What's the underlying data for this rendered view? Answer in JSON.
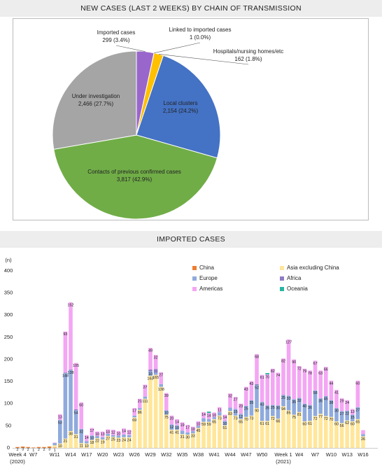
{
  "chart_data": [
    {
      "type": "pie",
      "title": "NEW CASES (LAST 2 WEEKS) BY CHAIN OF TRANSMISSION",
      "categories": [
        "Imported cases",
        "Linked to imported cases",
        "Hospitals/nursing homes/etc",
        "Local clusters",
        "Contacts of previous confirmed cases",
        "Under investigation"
      ],
      "values": [
        299,
        1,
        162,
        2154,
        3817,
        2466
      ],
      "value_labels": [
        "299 (3.4%)",
        "1 (0.0%)",
        "162 (1.8%)",
        "2,154 (24.2%)",
        "3,817 (42.9%)",
        "2,466 (27.7%)"
      ],
      "colors": [
        "#9966cc",
        "#ed7d31",
        "#ffc000",
        "#4472c4",
        "#70ad47",
        "#a5a5a5"
      ]
    },
    {
      "type": "bar",
      "stacked": true,
      "title": "IMPORTED CASES",
      "y_label": "(n)",
      "categories": [
        "Week 4",
        null,
        null,
        "W7",
        null,
        null,
        null,
        "W11",
        null,
        null,
        "W14",
        null,
        null,
        "W17",
        null,
        null,
        "W20",
        null,
        null,
        "W23",
        null,
        null,
        "W26",
        null,
        null,
        "W29",
        null,
        null,
        "W32",
        null,
        null,
        "W35",
        null,
        null,
        "W38",
        null,
        null,
        "W41",
        null,
        null,
        "W44",
        null,
        null,
        "W47",
        null,
        null,
        "W50",
        null,
        null,
        null,
        "Week 1",
        null,
        null,
        "W4",
        null,
        null,
        "W7",
        null,
        null,
        "W10",
        null,
        null,
        "W13",
        null,
        null,
        "W16"
      ],
      "year_labels": [
        {
          "index": 0,
          "label": "(2020)"
        },
        {
          "index": 50,
          "label": "(2021)"
        }
      ],
      "ylim": [
        0,
        400
      ],
      "yticks": [
        0,
        50,
        100,
        150,
        200,
        250,
        300,
        350,
        400
      ],
      "grid": false,
      "legend": "top-right",
      "series": [
        {
          "name": "China",
          "color": "#ed7d31",
          "values": [
            2,
            3,
            2,
            1,
            2,
            2,
            3,
            1,
            0,
            0,
            0,
            0,
            0,
            0,
            0,
            0,
            0,
            0,
            0,
            0,
            0,
            0,
            0,
            0,
            0,
            0,
            0,
            0,
            0,
            0,
            0,
            0,
            0,
            0,
            0,
            0,
            0,
            0,
            0,
            0,
            0,
            0,
            0,
            0,
            0,
            0,
            0,
            0,
            0,
            0,
            0,
            0,
            0,
            0,
            0,
            0,
            0,
            0,
            0,
            0,
            0,
            0,
            0,
            0,
            0,
            0
          ]
        },
        {
          "name": "Asia excluding China",
          "color": "#ffe699",
          "values": [
            0,
            0,
            0,
            0,
            0,
            0,
            1,
            5,
            10,
            21,
            38,
            31,
            11,
            10,
            18,
            22,
            19,
            27,
            25,
            23,
            24,
            24,
            69,
            86,
            111,
            163,
            165,
            138,
            75,
            41,
            41,
            31,
            30,
            33,
            45,
            59,
            59,
            65,
            73,
            51,
            83,
            73,
            65,
            70,
            73,
            90,
            61,
            61,
            72,
            66,
            94,
            85,
            75,
            81,
            60,
            61,
            72,
            77,
            72,
            70,
            60,
            56,
            62,
            60,
            65,
            26
          ]
        },
        {
          "name": "Europe",
          "color": "#8faadc",
          "values": [
            0,
            0,
            0,
            0,
            0,
            0,
            0,
            5,
            53,
            148,
            138,
            54,
            32,
            5,
            10,
            5,
            5,
            5,
            4,
            5,
            6,
            5,
            4,
            4,
            5,
            10,
            5,
            6,
            10,
            12,
            10,
            8,
            5,
            5,
            5,
            8,
            6,
            5,
            8,
            10,
            8,
            15,
            12,
            25,
            35,
            52,
            43,
            35,
            25,
            30,
            25,
            33,
            35,
            32,
            40,
            36,
            58,
            35,
            45,
            38,
            30,
            27,
            22,
            15,
            27,
            5
          ]
        },
        {
          "name": "Africa",
          "color": "#8e7cc3",
          "values": [
            0,
            0,
            0,
            0,
            0,
            0,
            0,
            0,
            0,
            1,
            1,
            2,
            0,
            0,
            0,
            0,
            0,
            0,
            0,
            0,
            0,
            0,
            0,
            0,
            0,
            4,
            8,
            0,
            0,
            0,
            0,
            0,
            0,
            0,
            0,
            0,
            0,
            0,
            0,
            0,
            0,
            0,
            0,
            0,
            0,
            2,
            0,
            0,
            0,
            0,
            1,
            0,
            0,
            0,
            0,
            0,
            0,
            0,
            0,
            0,
            0,
            0,
            0,
            0,
            0,
            0
          ]
        },
        {
          "name": "Americas",
          "color": "#f4a6f4",
          "values": [
            0,
            0,
            0,
            0,
            0,
            0,
            0,
            1,
            13,
            93,
            152,
            105,
            60,
            14,
            17,
            10,
            13,
            10,
            12,
            10,
            14,
            12,
            17,
            21,
            27,
            49,
            32,
            27,
            39,
            20,
            14,
            19,
            17,
            10,
            10,
            14,
            14,
            10,
            11,
            14,
            32,
            27,
            23,
            43,
            43,
            68,
            61,
            70,
            82,
            74,
            82,
            127,
            90,
            72,
            79,
            78,
            67,
            63,
            66,
            44,
            41,
            29,
            24,
            13,
            60,
            9
          ]
        },
        {
          "name": "Oceania",
          "color": "#2ab5a0",
          "values": [
            0,
            0,
            0,
            0,
            0,
            0,
            0,
            0,
            0,
            0,
            0,
            0,
            0,
            0,
            0,
            0,
            0,
            0,
            0,
            0,
            0,
            0,
            0,
            0,
            0,
            0,
            0,
            0,
            0,
            0,
            0,
            0,
            0,
            0,
            0,
            0,
            3,
            0,
            0,
            0,
            0,
            0,
            0,
            0,
            0,
            0,
            0,
            3,
            0,
            0,
            0,
            0,
            0,
            0,
            0,
            0,
            0,
            0,
            0,
            0,
            0,
            0,
            0,
            0,
            0,
            0
          ]
        }
      ]
    }
  ]
}
